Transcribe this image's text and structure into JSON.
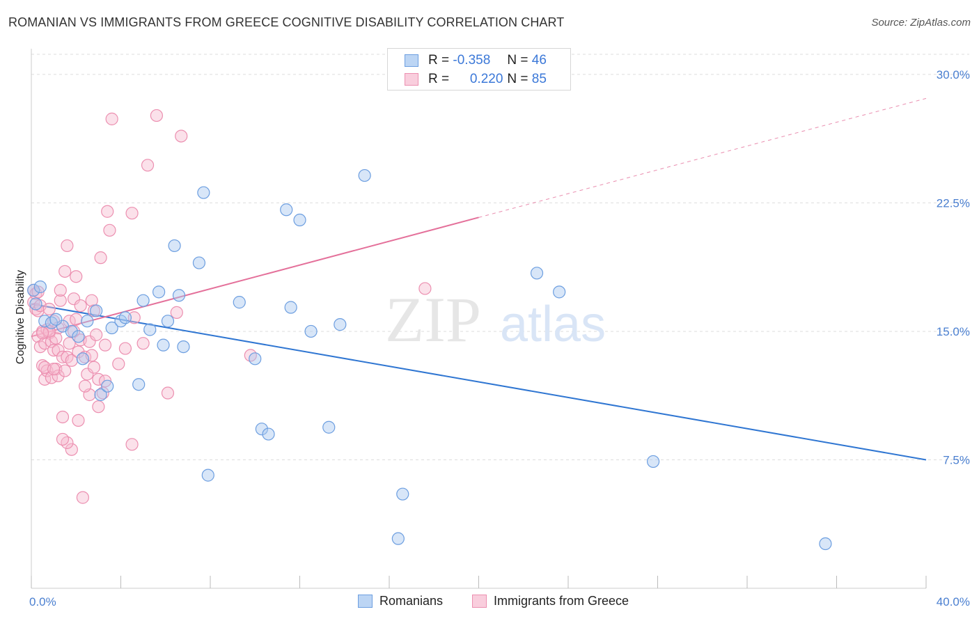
{
  "title": "ROMANIAN VS IMMIGRANTS FROM GREECE COGNITIVE DISABILITY CORRELATION CHART",
  "source": "Source: ZipAtlas.com",
  "watermark": {
    "zip": "ZIP",
    "atlas": "atlas"
  },
  "legend": {
    "rows": [
      {
        "r_label": "R =",
        "r_value": "-0.358",
        "n_label": "N =",
        "n_value": "46"
      },
      {
        "r_label": "R =",
        "r_value": "0.220",
        "n_label": "N =",
        "n_value": "85"
      }
    ]
  },
  "colors": {
    "blue_fill": "#a9c8ef",
    "blue_stroke": "#6c9ee0",
    "blue_line": "#2f76d2",
    "pink_fill": "#f6bcd0",
    "pink_stroke": "#ec8fb0",
    "pink_line": "#e4709a",
    "grid": "#dddddd",
    "tick_text": "#4a7fd0"
  },
  "chart_data": {
    "type": "scatter",
    "title": "ROMANIAN VS IMMIGRANTS FROM GREECE COGNITIVE DISABILITY CORRELATION CHART",
    "xlabel": "",
    "ylabel": "Cognitive Disability",
    "xlim": [
      0,
      40
    ],
    "ylim": [
      0,
      31.5
    ],
    "x_tick_labels": {
      "min": "0.0%",
      "max": "40.0%"
    },
    "y_ticks": [
      7.5,
      15.0,
      22.5,
      30.0
    ],
    "y_tick_labels": [
      "7.5%",
      "15.0%",
      "22.5%",
      "30.0%"
    ],
    "grid": true,
    "legend_position": "top-center",
    "series": [
      {
        "name": "Romanians",
        "color": "blue",
        "r": -0.358,
        "n": 46,
        "trend": {
          "x0": 0,
          "y0": 16.6,
          "x1": 40,
          "y1": 7.5,
          "dashed_from": null
        },
        "points": [
          [
            0.1,
            17.4
          ],
          [
            0.2,
            16.6
          ],
          [
            0.6,
            15.6
          ],
          [
            0.9,
            15.5
          ],
          [
            1.4,
            15.3
          ],
          [
            1.8,
            15.0
          ],
          [
            2.1,
            14.7
          ],
          [
            2.3,
            13.4
          ],
          [
            2.5,
            15.6
          ],
          [
            2.9,
            16.2
          ],
          [
            3.1,
            11.3
          ],
          [
            3.4,
            11.8
          ],
          [
            3.6,
            15.2
          ],
          [
            4.0,
            15.6
          ],
          [
            4.2,
            15.8
          ],
          [
            4.8,
            11.9
          ],
          [
            5.0,
            16.8
          ],
          [
            5.3,
            15.1
          ],
          [
            5.7,
            17.3
          ],
          [
            5.9,
            14.2
          ],
          [
            6.1,
            15.6
          ],
          [
            6.4,
            20.0
          ],
          [
            6.6,
            17.1
          ],
          [
            6.8,
            14.1
          ],
          [
            7.5,
            19.0
          ],
          [
            7.7,
            23.1
          ],
          [
            7.9,
            6.6
          ],
          [
            9.3,
            16.7
          ],
          [
            10.0,
            13.4
          ],
          [
            10.3,
            9.3
          ],
          [
            10.6,
            9.0
          ],
          [
            11.4,
            22.1
          ],
          [
            11.6,
            16.4
          ],
          [
            12.0,
            21.5
          ],
          [
            12.5,
            15.0
          ],
          [
            13.3,
            9.4
          ],
          [
            13.8,
            15.4
          ],
          [
            14.9,
            24.1
          ],
          [
            16.4,
            2.9
          ],
          [
            16.6,
            5.5
          ],
          [
            22.6,
            18.4
          ],
          [
            23.6,
            17.3
          ],
          [
            27.8,
            7.4
          ],
          [
            35.5,
            2.6
          ],
          [
            0.4,
            17.6
          ],
          [
            1.1,
            15.7
          ]
        ]
      },
      {
        "name": "Immigrants from Greece",
        "color": "pink",
        "r": 0.22,
        "n": 85,
        "trend": {
          "x0": 0,
          "y0": 14.7,
          "x1": 40,
          "y1": 28.6,
          "dashed_from": 20.0
        },
        "points": [
          [
            0.1,
            17.4
          ],
          [
            0.1,
            16.7
          ],
          [
            0.2,
            16.3
          ],
          [
            0.2,
            17.2
          ],
          [
            0.3,
            14.7
          ],
          [
            0.3,
            16.2
          ],
          [
            0.4,
            14.1
          ],
          [
            0.4,
            16.5
          ],
          [
            0.5,
            15.0
          ],
          [
            0.5,
            13.0
          ],
          [
            0.6,
            12.2
          ],
          [
            0.6,
            14.3
          ],
          [
            0.7,
            12.7
          ],
          [
            0.7,
            15.1
          ],
          [
            0.8,
            14.9
          ],
          [
            0.8,
            16.3
          ],
          [
            0.9,
            14.4
          ],
          [
            0.9,
            12.3
          ],
          [
            1.0,
            15.6
          ],
          [
            1.0,
            13.9
          ],
          [
            1.1,
            12.8
          ],
          [
            1.1,
            14.6
          ],
          [
            1.2,
            13.9
          ],
          [
            1.2,
            12.4
          ],
          [
            1.3,
            16.8
          ],
          [
            1.3,
            17.4
          ],
          [
            1.4,
            13.5
          ],
          [
            1.4,
            10.0
          ],
          [
            1.5,
            18.5
          ],
          [
            1.5,
            12.7
          ],
          [
            1.6,
            20.0
          ],
          [
            1.6,
            13.5
          ],
          [
            1.7,
            14.3
          ],
          [
            1.7,
            15.6
          ],
          [
            1.8,
            13.3
          ],
          [
            1.8,
            8.1
          ],
          [
            1.9,
            15.0
          ],
          [
            1.9,
            16.9
          ],
          [
            2.0,
            18.2
          ],
          [
            2.0,
            15.7
          ],
          [
            2.1,
            13.8
          ],
          [
            2.2,
            16.5
          ],
          [
            2.2,
            14.5
          ],
          [
            2.3,
            5.3
          ],
          [
            2.4,
            13.5
          ],
          [
            2.5,
            12.5
          ],
          [
            2.6,
            14.4
          ],
          [
            2.6,
            11.3
          ],
          [
            2.7,
            16.8
          ],
          [
            2.8,
            12.9
          ],
          [
            2.8,
            16.2
          ],
          [
            2.9,
            14.8
          ],
          [
            3.0,
            12.2
          ],
          [
            3.0,
            10.6
          ],
          [
            3.1,
            19.3
          ],
          [
            3.2,
            11.4
          ],
          [
            3.3,
            14.2
          ],
          [
            3.4,
            22.0
          ],
          [
            3.5,
            20.9
          ],
          [
            3.6,
            27.4
          ],
          [
            4.5,
            8.4
          ],
          [
            4.5,
            21.9
          ],
          [
            4.6,
            15.8
          ],
          [
            5.0,
            14.3
          ],
          [
            5.2,
            24.7
          ],
          [
            5.6,
            27.6
          ],
          [
            6.1,
            11.4
          ],
          [
            6.5,
            16.1
          ],
          [
            6.7,
            26.4
          ],
          [
            9.8,
            13.6
          ],
          [
            17.6,
            17.5
          ],
          [
            0.3,
            17.3
          ],
          [
            0.6,
            12.9
          ],
          [
            1.2,
            15.2
          ],
          [
            1.6,
            8.5
          ],
          [
            2.1,
            9.8
          ],
          [
            2.7,
            13.6
          ],
          [
            3.3,
            12.1
          ],
          [
            0.8,
            15.0
          ],
          [
            1.0,
            12.8
          ],
          [
            4.2,
            14.0
          ],
          [
            2.4,
            11.8
          ],
          [
            1.4,
            8.7
          ],
          [
            3.9,
            13.1
          ],
          [
            0.5,
            14.9
          ]
        ]
      }
    ]
  },
  "bottom_legend": [
    {
      "label": "Romanians",
      "color": "blue"
    },
    {
      "label": "Immigrants from Greece",
      "color": "pink"
    }
  ]
}
